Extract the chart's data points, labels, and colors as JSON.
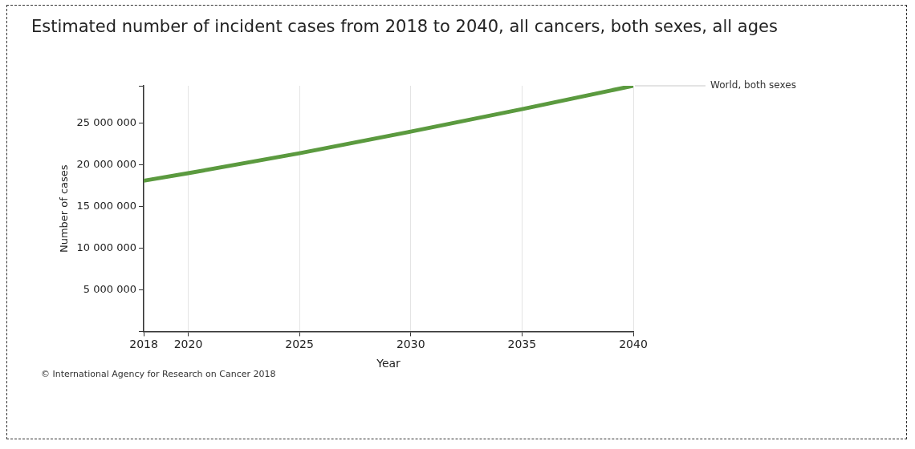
{
  "chart_data": {
    "type": "line",
    "title": "Estimated number of incident cases from 2018 to 2040, all cancers, both sexes, all ages",
    "xlabel": "Year",
    "ylabel": "Number of cases",
    "x": [
      2018,
      2020,
      2025,
      2030,
      2035,
      2040
    ],
    "series": [
      {
        "name": "World, both sexes",
        "color": "#5b9a3f",
        "values": [
          18100000,
          19000000,
          21400000,
          24000000,
          26700000,
          29500000
        ]
      }
    ],
    "xlim": [
      2018,
      2040
    ],
    "xticks": [
      2018,
      2020,
      2025,
      2030,
      2035,
      2040
    ],
    "ylim": [
      0,
      29500000
    ],
    "yticks": [
      {
        "value": 0,
        "label": null
      },
      {
        "value": 5000000,
        "label": "5 000 000"
      },
      {
        "value": 10000000,
        "label": "10 000 000"
      },
      {
        "value": 15000000,
        "label": "15 000 000"
      },
      {
        "value": 20000000,
        "label": "20 000 000"
      },
      {
        "value": 25000000,
        "label": "25 000 000"
      },
      {
        "value": 29500000,
        "label": null
      }
    ],
    "grid": "x",
    "marker": "none",
    "line_style": "solid",
    "annotations": [
      "© International Agency for Research on Cancer 2018"
    ]
  }
}
